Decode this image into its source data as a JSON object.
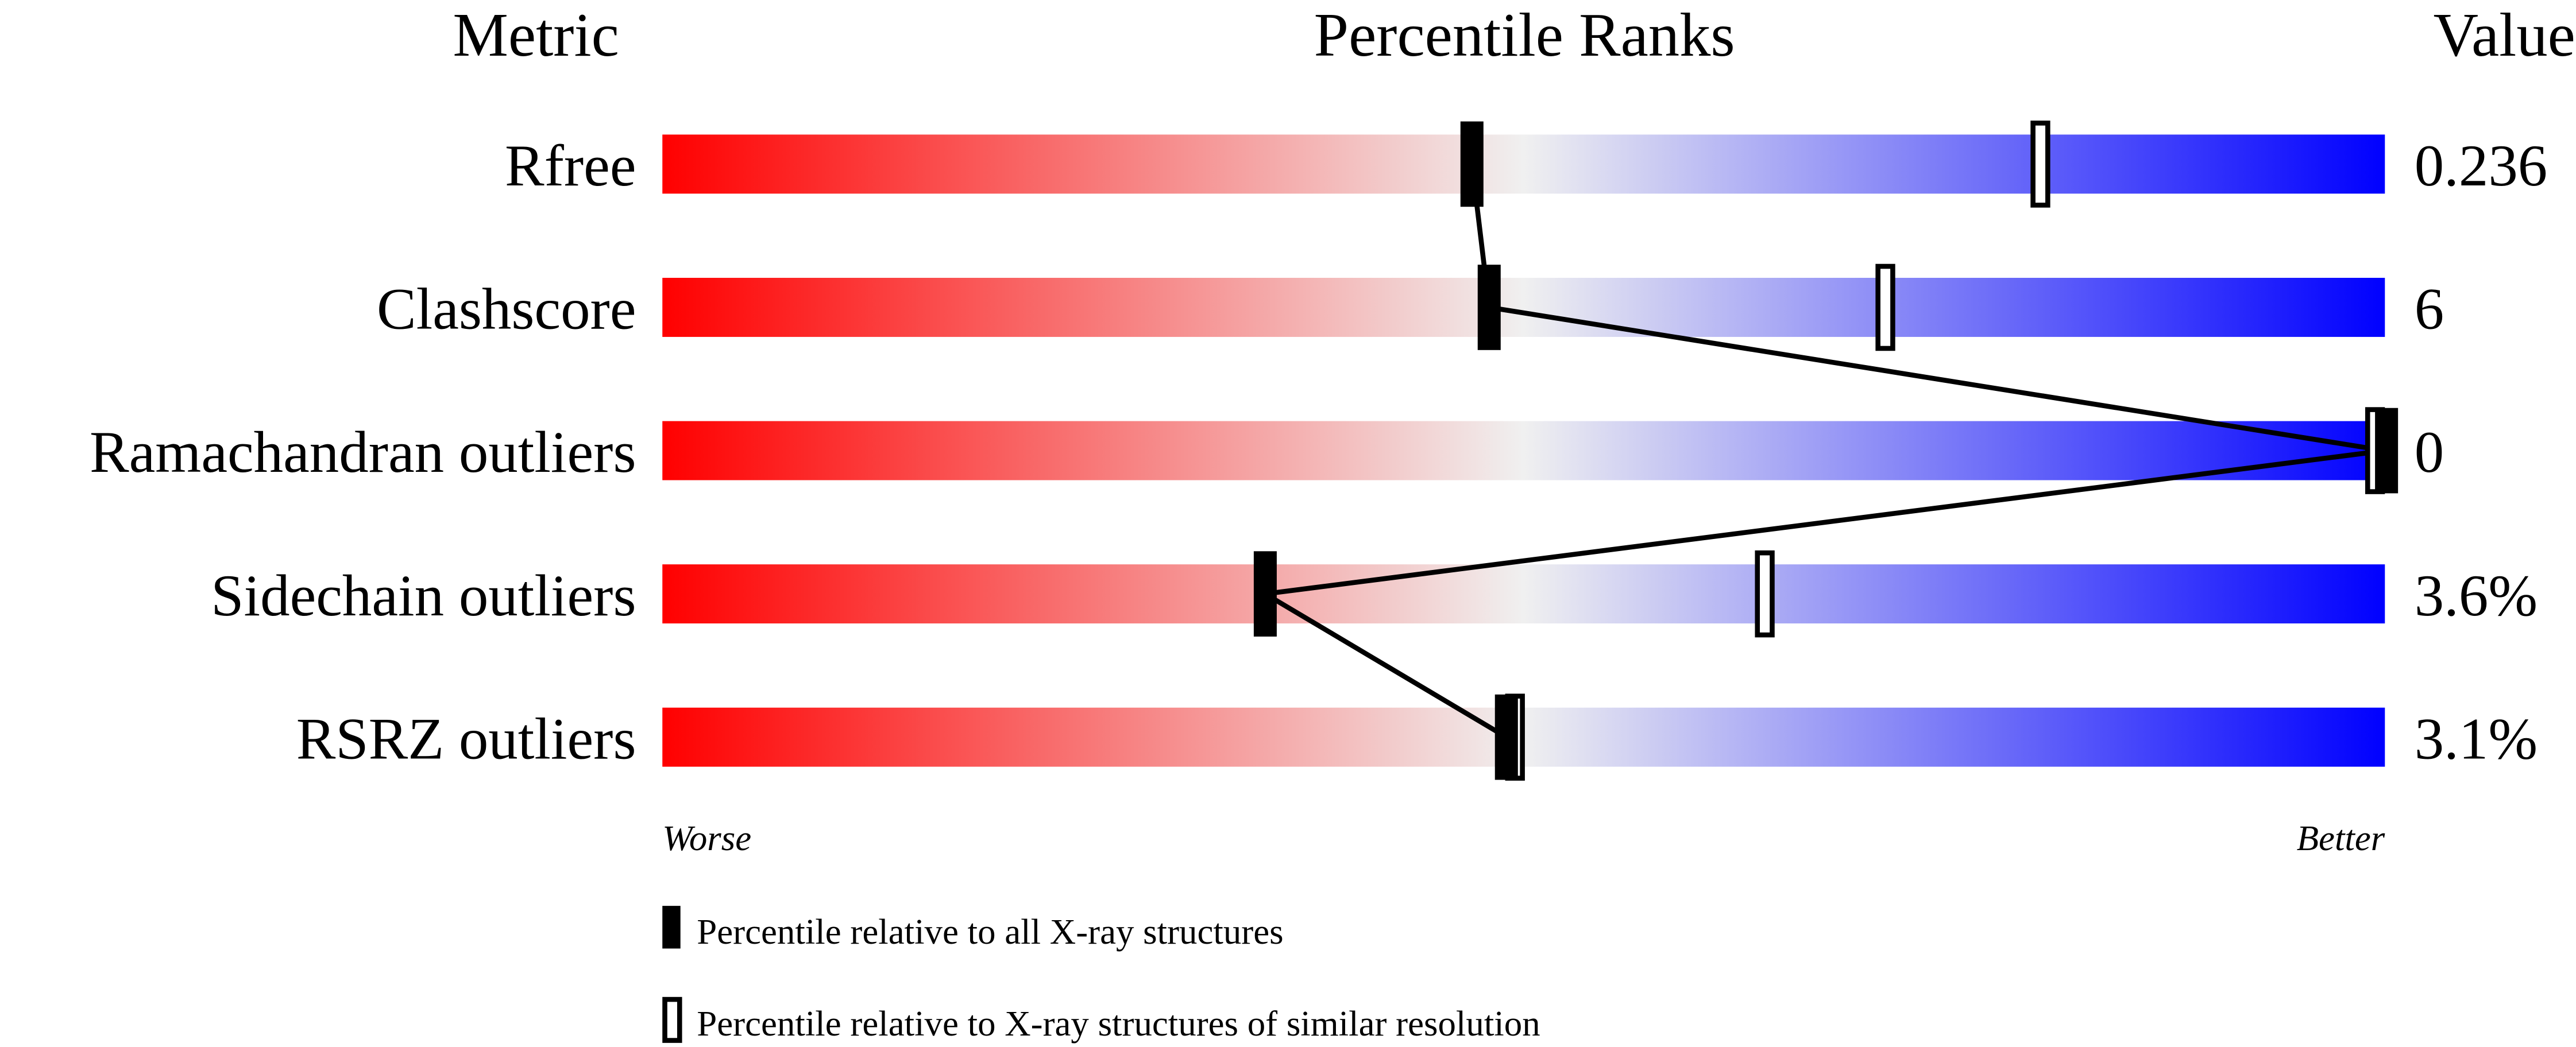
{
  "chart_data": {
    "type": "percentile-slider",
    "headers": {
      "metric": "Metric",
      "ranks": "Percentile Ranks",
      "value": "Value"
    },
    "axis": {
      "left": "Worse",
      "right": "Better",
      "range": [
        0,
        100
      ]
    },
    "colors": {
      "worse": "#ff0000",
      "middle": "#f0f0f0",
      "better": "#0000ff",
      "marker": "#000000"
    },
    "metrics": [
      {
        "name": "Rfree",
        "value": "0.236",
        "percentile_all": 47,
        "percentile_similar": 80
      },
      {
        "name": "Clashscore",
        "value": "6",
        "percentile_all": 48,
        "percentile_similar": 71
      },
      {
        "name": "Ramachandran outliers",
        "value": "0",
        "percentile_all": 100,
        "percentile_similar": 100
      },
      {
        "name": "Sidechain outliers",
        "value": "3.6%",
        "percentile_all": 35,
        "percentile_similar": 64
      },
      {
        "name": "RSRZ outliers",
        "value": "3.1%",
        "percentile_all": 49,
        "percentile_similar": 49.5
      }
    ],
    "legend": {
      "all": "Percentile relative to all X-ray structures",
      "similar": "Percentile relative to X-ray structures of similar resolution"
    }
  }
}
